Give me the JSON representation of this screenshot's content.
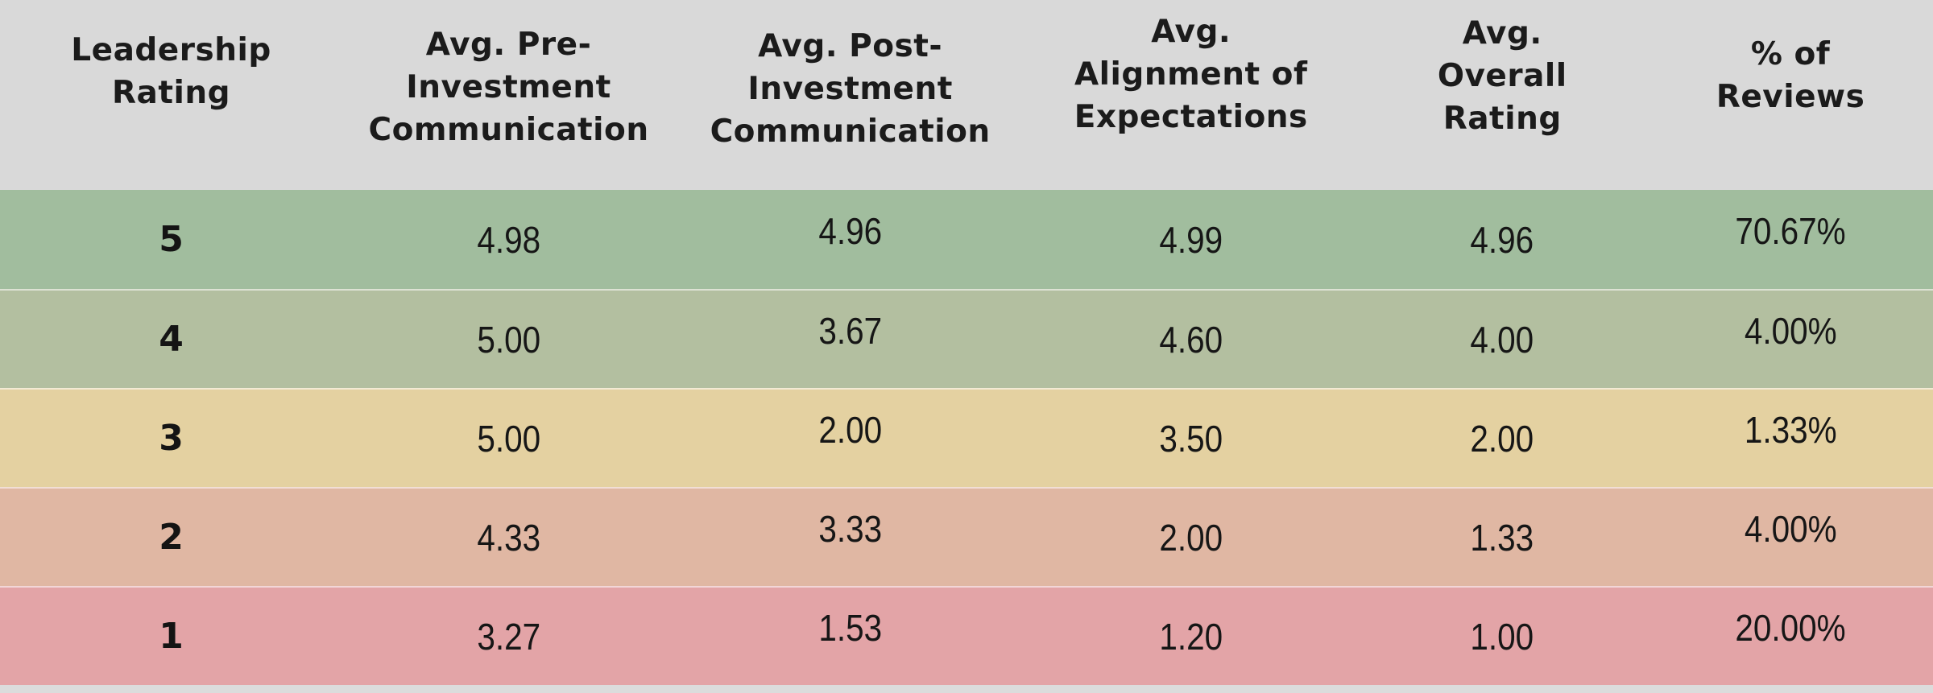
{
  "table": {
    "headers": [
      {
        "key": "leadership-rating",
        "lines": [
          "Leadership",
          "Rating"
        ]
      },
      {
        "key": "avg-pre-investment-communication",
        "lines": [
          "Avg. Pre-",
          "Investment",
          "Communication"
        ]
      },
      {
        "key": "avg-post-investment-communication",
        "lines": [
          "Avg. Post-",
          "Investment",
          "Communication"
        ]
      },
      {
        "key": "avg-alignment-of-expectations",
        "lines": [
          "Avg.",
          "Alignment of",
          "Expectations"
        ]
      },
      {
        "key": "avg-overall-rating",
        "lines": [
          "Avg.",
          "Overall",
          "Rating"
        ]
      },
      {
        "key": "percent-of-reviews",
        "lines": [
          "% of",
          "Reviews"
        ]
      }
    ],
    "rows": [
      {
        "rating": "5",
        "pre": "4.98",
        "post": "4.96",
        "alignment": "4.99",
        "overall": "4.96",
        "pct": "70.67%",
        "color": "#a1bd9e"
      },
      {
        "rating": "4",
        "pre": "5.00",
        "post": "3.67",
        "alignment": "4.60",
        "overall": "4.00",
        "pct": "4.00%",
        "color": "#b3bfa0"
      },
      {
        "rating": "3",
        "pre": "5.00",
        "post": "2.00",
        "alignment": "3.50",
        "overall": "2.00",
        "pct": "1.33%",
        "color": "#e4d1a1"
      },
      {
        "rating": "2",
        "pre": "4.33",
        "post": "3.33",
        "alignment": "2.00",
        "overall": "1.33",
        "pct": "4.00%",
        "color": "#e0b7a3"
      },
      {
        "rating": "1",
        "pre": "3.27",
        "post": "1.53",
        "alignment": "1.20",
        "overall": "1.00",
        "pct": "20.00%",
        "color": "#e3a4a7"
      }
    ],
    "colors": {
      "header_bg": "#d9d9d9",
      "bottom_strip_bg": "#dcdcdc",
      "text": "#1b1b1b"
    }
  }
}
